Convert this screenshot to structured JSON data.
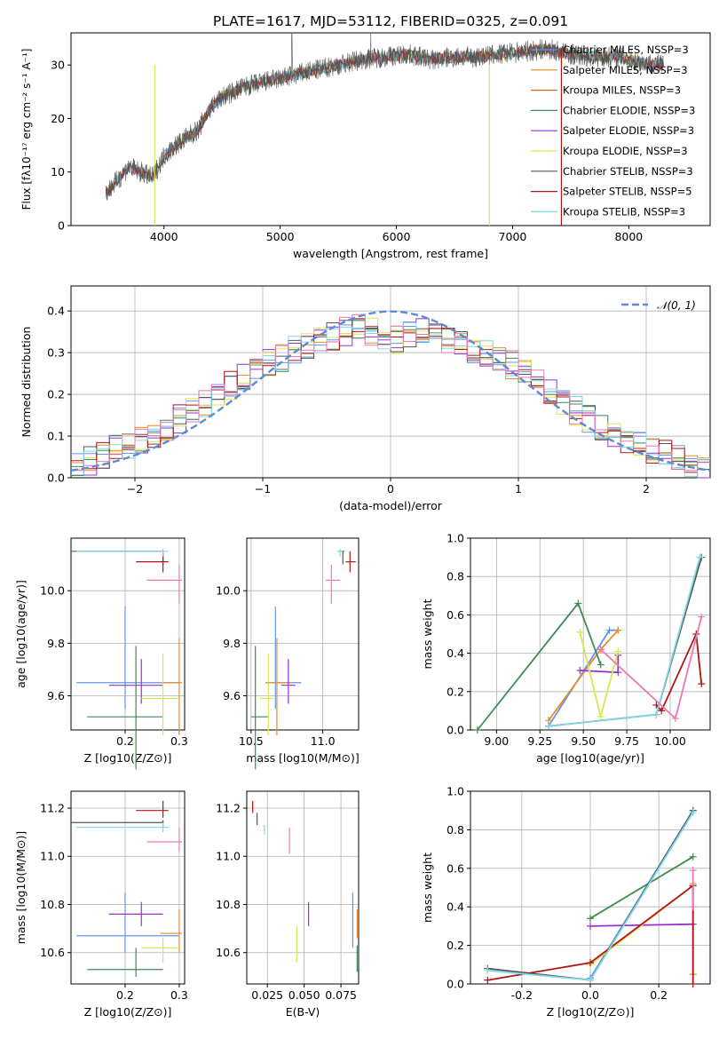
{
  "title": "PLATE=1617, MJD=53112, FIBERID=0325, z=0.091",
  "colors": {
    "chabrier_miles": "#6495ed",
    "salpeter_miles": "#e68c2a",
    "kroupa_miles": "#d2691e",
    "chabrier_elodie": "#3c8c50",
    "salpeter_elodie": "#9932cc",
    "kroupa_elodie": "#d7e650",
    "chabrier_stelib": "#555555",
    "salpeter_stelib": "#b41414",
    "kroupa_stelib": "#7fd8e6",
    "pink": "#e87ab4",
    "normal": "#5b8ad6",
    "grid": "#b0b0b0"
  },
  "chart_data": [
    {
      "id": "spectrum",
      "type": "line",
      "xlabel": "wavelength [Angstrom, rest frame]",
      "ylabel": "Flux [fλ10⁻¹⁷ erg cm⁻² s⁻¹ A⁻¹]",
      "xlim": [
        3200,
        8700
      ],
      "ylim": [
        0,
        36
      ],
      "xticks": [
        4000,
        5000,
        6000,
        7000,
        8000
      ],
      "yticks": [
        0,
        10,
        20,
        30
      ],
      "legend_position": "top-right",
      "legend": [
        "Chabrier MILES, NSSP=3",
        "Salpeter MILES, NSSP=3",
        "Kroupa MILES, NSSP=3",
        "Chabrier ELODIE, NSSP=3",
        "Salpeter ELODIE, NSSP=3",
        "Kroupa ELODIE, NSSP=3",
        "Chabrier STELIB, NSSP=3",
        "Salpeter STELIB, NSSP=5",
        "Kroupa STELIB, NSSP=3"
      ],
      "continuum_x": [
        3500,
        3700,
        3900,
        4000,
        4100,
        4300,
        4400,
        4500,
        4700,
        4900,
        5100,
        5300,
        5500,
        5700,
        5900,
        6100,
        6300,
        6500,
        6700,
        6900,
        7100,
        7300,
        7500,
        7700,
        7900,
        8100,
        8300
      ],
      "continuum_y": [
        6,
        11,
        9,
        13,
        15,
        18,
        22,
        24,
        26,
        27,
        28,
        29,
        30,
        31,
        31.5,
        32,
        31,
        31.5,
        31.5,
        32,
        32.5,
        33,
        32,
        31.5,
        31.5,
        30.5,
        30
      ],
      "grid": false
    },
    {
      "id": "residuals",
      "type": "histogram",
      "xlabel": "(data-model)/error",
      "ylabel": "Normed distribution",
      "xlim": [
        -2.5,
        2.5
      ],
      "ylim": [
        0,
        0.46
      ],
      "xticks": [
        -2,
        -1,
        0,
        1,
        2
      ],
      "yticks": [
        0.0,
        0.1,
        0.2,
        0.3,
        0.4
      ],
      "legend": [
        "𝒩(0, 1)"
      ],
      "legend_position": "top-right",
      "bins": [
        -2.5,
        -2.4,
        -2.3,
        -2.2,
        -2.1,
        -2.0,
        -1.9,
        -1.8,
        -1.7,
        -1.6,
        -1.5,
        -1.4,
        -1.3,
        -1.2,
        -1.1,
        -1.0,
        -0.9,
        -0.8,
        -0.7,
        -0.6,
        -0.5,
        -0.4,
        -0.3,
        -0.2,
        -0.1,
        0.0,
        0.1,
        0.2,
        0.3,
        0.4,
        0.5,
        0.6,
        0.7,
        0.8,
        0.9,
        1.0,
        1.1,
        1.2,
        1.3,
        1.4,
        1.5,
        1.6,
        1.7,
        1.8,
        1.9,
        2.0,
        2.1,
        2.2,
        2.3,
        2.4,
        2.5
      ],
      "hist_base": [
        0.035,
        0.04,
        0.05,
        0.07,
        0.075,
        0.09,
        0.1,
        0.12,
        0.14,
        0.16,
        0.18,
        0.2,
        0.22,
        0.24,
        0.26,
        0.28,
        0.29,
        0.31,
        0.32,
        0.33,
        0.34,
        0.35,
        0.36,
        0.35,
        0.34,
        0.33,
        0.34,
        0.35,
        0.34,
        0.33,
        0.32,
        0.31,
        0.3,
        0.29,
        0.27,
        0.25,
        0.23,
        0.2,
        0.18,
        0.16,
        0.14,
        0.12,
        0.1,
        0.09,
        0.075,
        0.065,
        0.055,
        0.045,
        0.035,
        0.025
      ],
      "grid": true
    },
    {
      "id": "age_vs_Z",
      "type": "errorbar",
      "xlabel": "Z [log10(Z/Z⊙)]",
      "ylabel": "age  [log10(age/yr)]",
      "xlim": [
        0.1,
        0.31
      ],
      "ylim": [
        9.47,
        10.2
      ],
      "xticks": [
        0.2,
        0.3
      ],
      "yticks": [
        9.6,
        9.8,
        10.0
      ],
      "grid": true
    },
    {
      "id": "age_vs_mass",
      "type": "errorbar",
      "xlabel": "mass [log10(M/M⊙)]",
      "ylabel": "",
      "xlim": [
        10.47,
        11.25
      ],
      "ylim": [
        9.47,
        10.2
      ],
      "xticks": [
        10.5,
        11.0
      ],
      "yticks": [
        9.6,
        9.8,
        10.0
      ],
      "grid": true
    },
    {
      "id": "weight_vs_age",
      "type": "line",
      "xlabel": "age  [log10(age/yr)]",
      "ylabel": "mass weight",
      "xlim": [
        8.85,
        10.23
      ],
      "ylim": [
        0,
        1
      ],
      "xticks": [
        9.0,
        9.25,
        9.5,
        9.75,
        10.0
      ],
      "yticks": [
        0.0,
        0.2,
        0.4,
        0.6,
        0.8,
        1.0
      ],
      "grid": true
    },
    {
      "id": "mass_vs_Z",
      "type": "errorbar",
      "xlabel": "Z [log10(Z/Z⊙)]",
      "ylabel": "mass [log10(M/M⊙)]",
      "xlim": [
        0.1,
        0.31
      ],
      "ylim": [
        10.47,
        11.27
      ],
      "xticks": [
        0.2,
        0.3
      ],
      "yticks": [
        10.6,
        10.8,
        11.0,
        11.2
      ],
      "grid": true
    },
    {
      "id": "mass_vs_ebv",
      "type": "errorbar",
      "xlabel": "E(B-V)",
      "ylabel": "",
      "xlim": [
        0.011,
        0.087
      ],
      "ylim": [
        10.47,
        11.27
      ],
      "xticks": [
        0.025,
        0.05,
        0.075
      ],
      "yticks": [
        10.6,
        10.8,
        11.0,
        11.2
      ],
      "grid": true
    },
    {
      "id": "weight_vs_Z",
      "type": "line",
      "xlabel": "Z [log10(Z/Z⊙)]",
      "ylabel": "mass weight",
      "xlim": [
        -0.35,
        0.35
      ],
      "ylim": [
        0,
        1
      ],
      "xticks": [
        -0.2,
        0.0,
        0.2
      ],
      "yticks": [
        0.0,
        0.2,
        0.4,
        0.6,
        0.8,
        1.0
      ],
      "grid": true
    }
  ],
  "fits": [
    {
      "name": "Chabrier MILES",
      "color": "#6495ed",
      "Z": 0.2,
      "Zerr": [
        0.11,
        0.3
      ],
      "age": 9.65,
      "ageErr": [
        9.55,
        9.94
      ],
      "mass": 10.67,
      "massErr": [
        10.6,
        10.85
      ],
      "ebv": 0.083,
      "ebvErr": [
        10.62,
        10.85
      ],
      "ageW": [
        [
          9.3,
          0.02
        ],
        [
          9.65,
          0.52
        ],
        [
          9.7,
          0.52
        ]
      ],
      "zW": [
        [
          0.0,
          0.03
        ],
        [
          0.3,
          0.9
        ]
      ]
    },
    {
      "name": "Salpeter MILES",
      "color": "#e68c2a",
      "Z": 0.3,
      "Zerr": [
        0.265,
        0.305
      ],
      "age": 9.65,
      "ageErr": [
        9.45,
        9.82
      ],
      "mass": 10.68,
      "massErr": [
        10.6,
        10.78
      ],
      "ebv": 0.086,
      "ebvErr": [
        10.66,
        10.78
      ],
      "ageW": [
        [
          9.3,
          0.05
        ],
        [
          9.6,
          0.42
        ],
        [
          9.7,
          0.52
        ]
      ],
      "zW": [
        [
          0.3,
          0.05
        ],
        [
          0.3,
          0.52
        ]
      ]
    },
    {
      "name": "Chabrier ELODIE",
      "color": "#3c8c50",
      "Z": 0.22,
      "Zerr": [
        0.13,
        0.27
      ],
      "age": 9.52,
      "ageErr": [
        9.32,
        9.79
      ],
      "mass": 10.53,
      "massErr": [
        10.5,
        10.62
      ],
      "ebv": 0.086,
      "ebvErr": [
        10.52,
        10.63
      ],
      "ageW": [
        [
          8.89,
          0.0
        ],
        [
          9.47,
          0.66
        ],
        [
          9.6,
          0.34
        ]
      ],
      "zW": [
        [
          0.0,
          0.34
        ],
        [
          0.3,
          0.66
        ]
      ]
    },
    {
      "name": "Salpeter ELODIE",
      "color": "#9932cc",
      "Z": 0.23,
      "Zerr": [
        0.17,
        0.27
      ],
      "age": 9.64,
      "ageErr": [
        9.57,
        9.74
      ],
      "mass": 10.76,
      "massErr": [
        10.71,
        10.81
      ],
      "ebv": 0.053,
      "ebvErr": [
        10.71,
        10.81
      ],
      "ageW": [
        [
          9.48,
          0.31
        ],
        [
          9.7,
          0.3
        ],
        [
          9.7,
          0.39
        ]
      ],
      "zW": [
        [
          0.0,
          0.3
        ],
        [
          0.3,
          0.31
        ]
      ]
    },
    {
      "name": "Kroupa ELODIE",
      "color": "#d7e650",
      "Z": 0.27,
      "Zerr": [
        0.23,
        0.3
      ],
      "age": 9.59,
      "ageErr": [
        9.45,
        9.76
      ],
      "mass": 10.62,
      "massErr": [
        10.56,
        10.66
      ],
      "ebv": 0.045,
      "ebvErr": [
        10.56,
        10.71
      ],
      "ageW": [
        [
          9.48,
          0.51
        ],
        [
          9.6,
          0.07
        ],
        [
          9.7,
          0.41
        ]
      ],
      "zW": [
        [
          0.0,
          0.1
        ],
        [
          0.3,
          0.51
        ]
      ]
    },
    {
      "name": "Chabrier STELIB",
      "color": "#555555",
      "Z": 0.27,
      "Zerr": [
        0.1,
        0.27
      ],
      "age": 10.15,
      "ageErr": [
        10.1,
        10.15
      ],
      "mass": 11.14,
      "massErr": [
        11.12,
        11.15
      ],
      "ebv": 0.018,
      "ebvErr": [
        11.13,
        11.18
      ],
      "ageW": [
        [
          9.3,
          0.02
        ],
        [
          9.92,
          0.08
        ],
        [
          10.18,
          0.9
        ]
      ],
      "zW": [
        [
          -0.3,
          0.08
        ],
        [
          0.0,
          0.02
        ],
        [
          0.3,
          0.9
        ]
      ]
    },
    {
      "name": "Salpeter STELIB",
      "color": "#b41414",
      "Z": 0.27,
      "Zerr": [
        0.22,
        0.28
      ],
      "age": 10.11,
      "ageErr": [
        10.07,
        10.15
      ],
      "mass": 11.19,
      "massErr": [
        11.16,
        11.23
      ],
      "ebv": 0.015,
      "ebvErr": [
        11.18,
        11.23
      ],
      "ageW": [
        [
          9.92,
          0.13
        ],
        [
          9.95,
          0.1
        ],
        [
          10.15,
          0.5
        ],
        [
          10.18,
          0.24
        ]
      ],
      "zW": [
        [
          -0.3,
          0.02
        ],
        [
          0.0,
          0.11
        ],
        [
          0.3,
          0.51
        ],
        [
          0.3,
          0.0
        ]
      ]
    },
    {
      "name": "Kroupa STELIB",
      "color": "#7fd8e6",
      "Z": 0.27,
      "Zerr": [
        0.11,
        0.28
      ],
      "age": 10.15,
      "ageErr": [
        10.13,
        10.16
      ],
      "mass": 11.12,
      "massErr": [
        11.1,
        11.14
      ],
      "ebv": 0.023,
      "ebvErr": [
        11.09,
        11.13
      ],
      "ageW": [
        [
          9.3,
          0.02
        ],
        [
          9.92,
          0.08
        ],
        [
          10.17,
          0.9
        ]
      ],
      "zW": [
        [
          -0.3,
          0.07
        ],
        [
          0.0,
          0.02
        ],
        [
          0.3,
          0.89
        ]
      ]
    },
    {
      "name": "pink",
      "color": "#e87ab4",
      "Z": 0.3,
      "Zerr": [
        0.24,
        0.305
      ],
      "age": 10.04,
      "ageErr": [
        9.95,
        10.1
      ],
      "mass": 11.06,
      "massErr": [
        11.02,
        11.12
      ],
      "ebv": 0.04,
      "ebvErr": [
        11.01,
        11.12
      ],
      "ageW": [
        [
          9.6,
          0.42
        ],
        [
          10.03,
          0.06
        ],
        [
          10.18,
          0.59
        ]
      ],
      "zW": [
        [
          0.3,
          0.4
        ],
        [
          0.3,
          0.59
        ]
      ]
    }
  ]
}
